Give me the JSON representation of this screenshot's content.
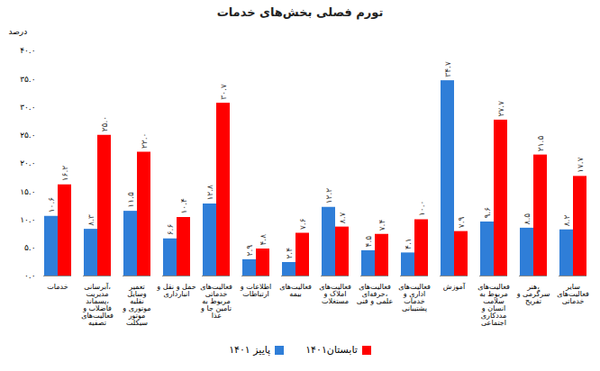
{
  "chart_data": {
    "type": "bar",
    "title": "تورم فصلی بخش‌های خدمات",
    "y_label": "درصد",
    "categories": [
      "خدمات",
      "آبرسانی، مدیریت پسماند، فاضلاب و فعالیت‌های تصفیه",
      "تعمیر وسایل نقلیه موتوری و موتور سیکلت",
      "حمل و نقل و انبارداری",
      "فعالیت‌های خدماتی مربوط به تامین جا و غذا",
      "اطلاعات و ارتباطات",
      "فعالیت‌های بیمه",
      "فعالیت‌های املاک و مستغلات",
      "فعالیت‌های حرفه‌ای، علمی و فنی",
      "فعالیت‌های اداری و خدمات پشتیبانی",
      "آموزش",
      "فعالیت‌های مربوط به سلامت انسان و مددکاری اجتماعی",
      "هنر، سرگرمی و تفریح",
      "سایر فعالیت‌های خدماتی"
    ],
    "series": [
      {
        "name": "پاییز ۱۴۰۱",
        "color": "#2f7ed8",
        "values": [
          10.6,
          8.3,
          11.5,
          6.6,
          12.8,
          2.9,
          2.4,
          12.2,
          4.5,
          4.1,
          34.7,
          9.6,
          8.5,
          8.2
        ],
        "value_labels": [
          "۱۰.۶",
          "۸.۳",
          "۱۱.۵",
          "۶.۶",
          "۱۲.۸",
          "۲.۹",
          "۲.۴",
          "۱۲.۲",
          "۴.۵",
          "۴.۱",
          "۳۴.۷",
          "۹.۶",
          "۸.۵",
          "۸.۲"
        ]
      },
      {
        "name": "تابستان۱۴۰۱",
        "color": "#ff0000",
        "values": [
          16.2,
          25.0,
          22.0,
          10.4,
          30.7,
          4.8,
          7.6,
          8.7,
          7.4,
          10.0,
          7.9,
          27.7,
          21.5,
          17.7
        ],
        "value_labels": [
          "۱۶.۲",
          "۲۵.۰",
          "۲۲.۰",
          "۱۰.۴",
          "۳۰.۷",
          "۴.۸",
          "۷.۶",
          "۸.۷",
          "۷.۴",
          "۱۰.۰",
          "۷.۹",
          "۲۷.۷",
          "۲۱.۵",
          "۱۷.۷"
        ]
      }
    ],
    "ylim": [
      0,
      40
    ],
    "yticks": [
      {
        "value": 0,
        "label": "۰.۰"
      },
      {
        "value": 5,
        "label": "۵.۰"
      },
      {
        "value": 10,
        "label": "۱۰.۰"
      },
      {
        "value": 15,
        "label": "۱۵.۰"
      },
      {
        "value": 20,
        "label": "۲۰.۰"
      },
      {
        "value": 25,
        "label": "۲۵.۰"
      },
      {
        "value": 30,
        "label": "۳۰.۰"
      },
      {
        "value": 35,
        "label": "۳۵.۰"
      },
      {
        "value": 40,
        "label": "۴۰.۰"
      }
    ],
    "grid": false,
    "data_labels": true,
    "legend": "bottom"
  }
}
